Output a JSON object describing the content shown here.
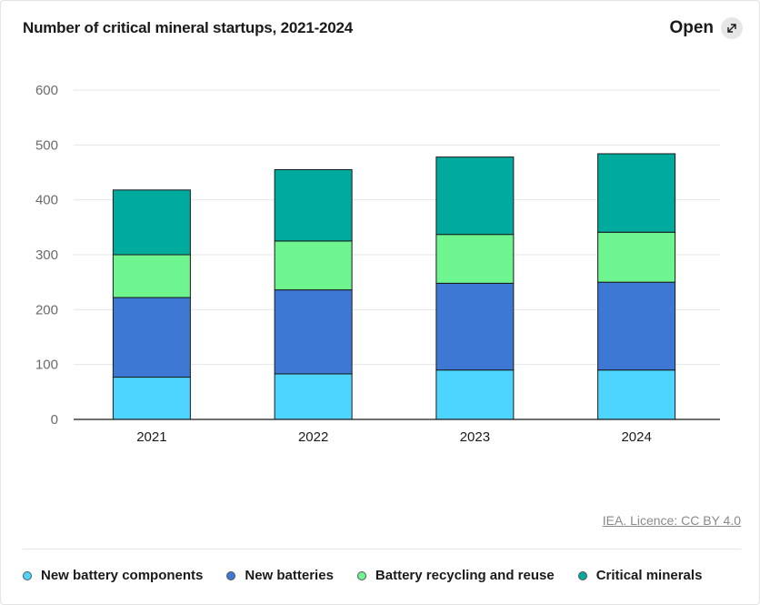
{
  "header": {
    "title": "Number of critical mineral startups, 2021-2024",
    "open_label": "Open",
    "open_icon": "expand-arrow-icon"
  },
  "footer": {
    "source_text": "IEA. Licence: CC BY 4.0"
  },
  "chart_data": {
    "type": "bar",
    "stacked": true,
    "categories": [
      "2021",
      "2022",
      "2023",
      "2024"
    ],
    "series": [
      {
        "name": "New battery components",
        "color": "#4dd5ff",
        "values": [
          77,
          83,
          90,
          90
        ]
      },
      {
        "name": "New batteries",
        "color": "#3d79d4",
        "values": [
          145,
          153,
          158,
          160
        ]
      },
      {
        "name": "Battery recycling and reuse",
        "color": "#6ef58f",
        "values": [
          78,
          89,
          89,
          91
        ]
      },
      {
        "name": "Critical minerals",
        "color": "#00ab9e",
        "values": [
          118,
          130,
          141,
          143
        ]
      }
    ],
    "ylim": [
      0,
      600
    ],
    "yticks": [
      0,
      100,
      200,
      300,
      400,
      500,
      600
    ],
    "grid": true,
    "legend_position": "bottom",
    "title": "Number of critical mineral startups, 2021-2024",
    "xlabel": "",
    "ylabel": ""
  }
}
